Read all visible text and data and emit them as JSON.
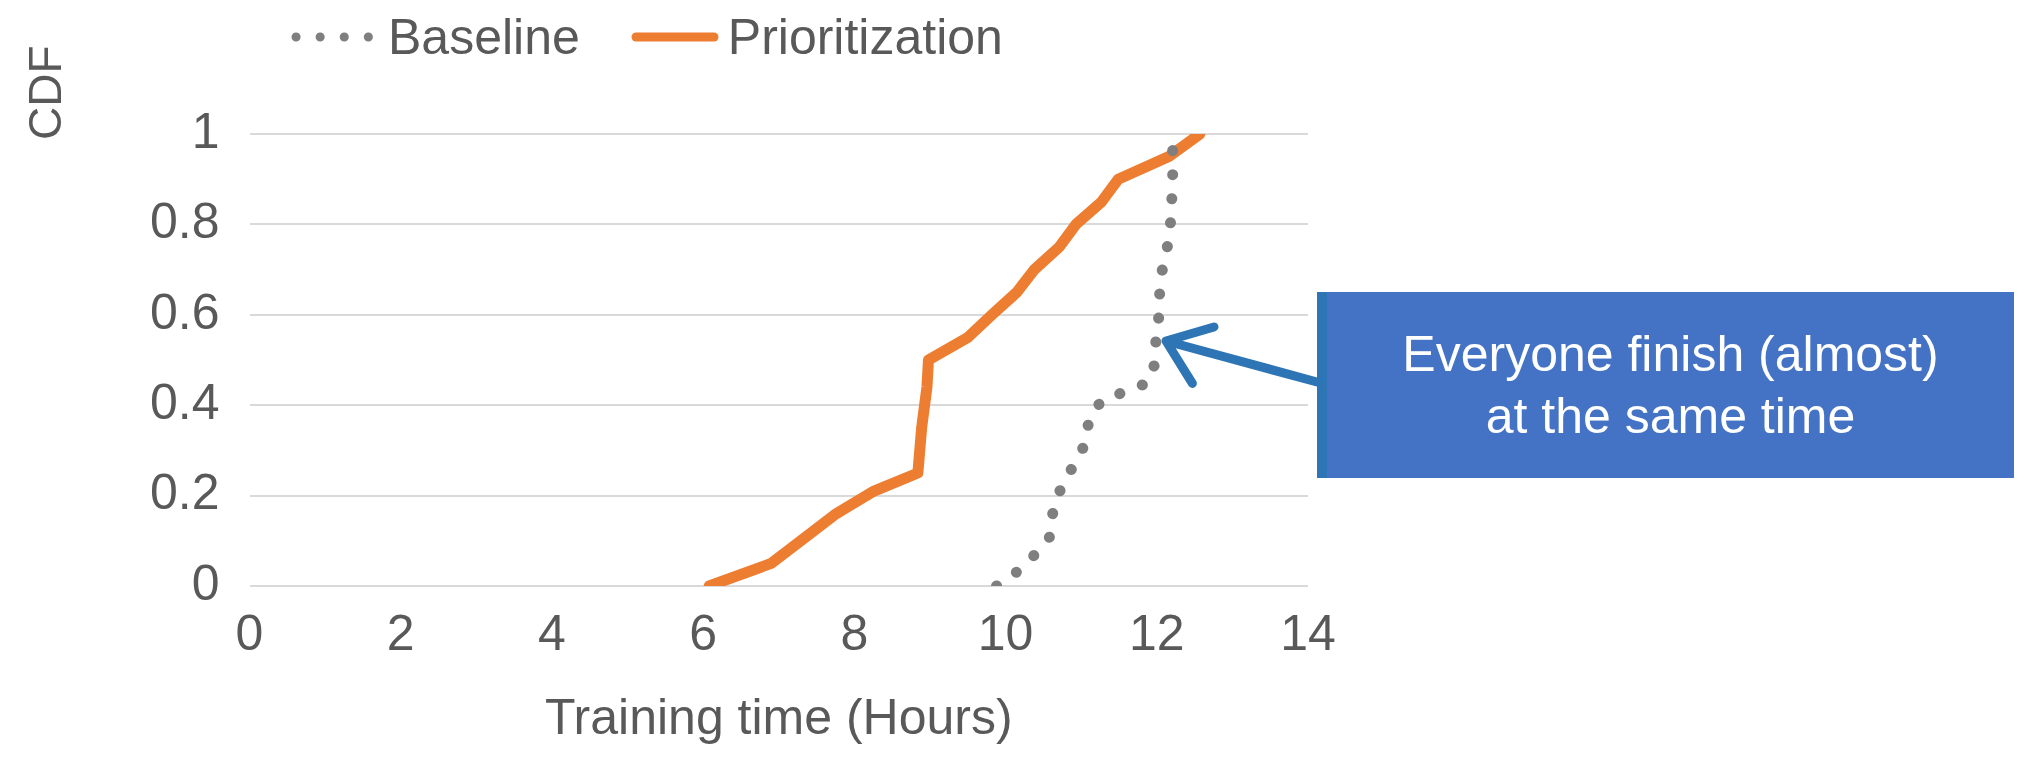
{
  "chart_data": {
    "type": "line",
    "xlabel": "Training time (Hours)",
    "ylabel": "CDF",
    "xlim": [
      0,
      14
    ],
    "xticks": [
      0,
      2,
      4,
      6,
      8,
      10,
      12,
      14
    ],
    "ylim": [
      0,
      1
    ],
    "yticks": [
      0,
      0.2,
      0.4,
      0.6,
      0.8,
      1
    ],
    "grid": "y",
    "legend": "top",
    "marker": "none",
    "series": [
      {
        "name": "Baseline",
        "color": "#7f7f7f",
        "line_style": "dotted",
        "x": [
          9.88,
          10.14,
          10.39,
          10.59,
          10.63,
          10.74,
          10.91,
          11.07,
          11.1,
          11.27,
          11.58,
          11.89,
          11.97,
          11.99,
          12.03,
          12.04,
          12.09,
          12.17,
          12.19,
          12.21,
          12.21,
          12.21
        ],
        "values": [
          0,
          0.03,
          0.07,
          0.11,
          0.17,
          0.22,
          0.27,
          0.32,
          0.37,
          0.41,
          0.43,
          0.45,
          0.49,
          0.55,
          0.6,
          0.66,
          0.72,
          0.77,
          0.83,
          0.89,
          0.94,
          1
        ]
      },
      {
        "name": "Prioritization",
        "color": "#ed7d31",
        "line_style": "solid",
        "x": [
          6.08,
          6.9,
          7.29,
          7.76,
          8.26,
          8.84,
          8.89,
          8.96,
          8.98,
          9.5,
          9.82,
          10.15,
          10.38,
          10.71,
          10.93,
          11.27,
          11.49,
          12.16,
          12.57
        ],
        "values": [
          0,
          0.05,
          0.1,
          0.16,
          0.21,
          0.25,
          0.35,
          0.44,
          0.5,
          0.55,
          0.6,
          0.65,
          0.7,
          0.75,
          0.8,
          0.85,
          0.9,
          0.95,
          1
        ]
      }
    ],
    "annotations": [
      "Everyone finish (almost) at the same time"
    ]
  }
}
